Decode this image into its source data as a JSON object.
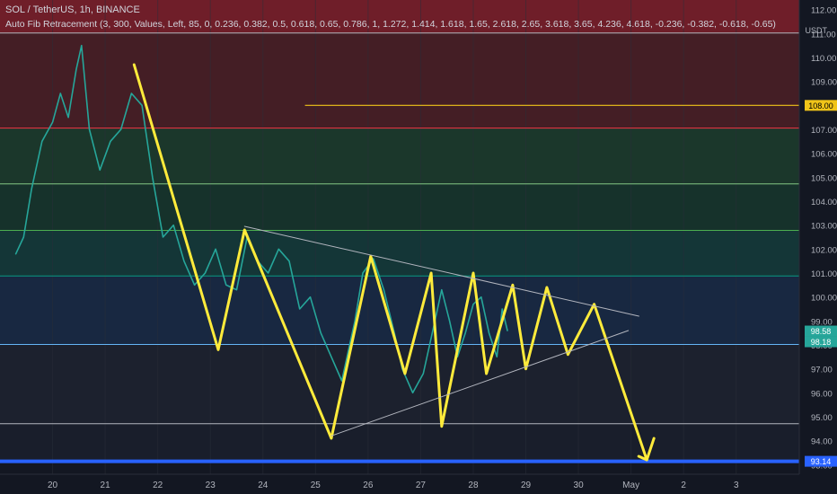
{
  "header": {
    "symbol": "SOL / TetherUS",
    "interval": "1h",
    "exchange": "BINANCE",
    "indicator": "Auto Fib Retracement (3, 300, Values, Left, 85, 0, 0.236, 0.382, 0.5, 0.618, 0.65, 0.786, 1, 1.272, 1.414, 1.618, 1.65, 2.618, 2.65, 3.618, 3.65, 4.236, 4.618, -0.236, -0.382, -0.618, -0.65)"
  },
  "price_axis": {
    "currency": "USDT",
    "ticks": [
      "112.00",
      "111.00",
      "110.00",
      "109.00",
      "108.00",
      "107.00",
      "106.00",
      "105.00",
      "104.00",
      "103.00",
      "102.00",
      "101.00",
      "100.00",
      "99.00",
      "98.00",
      "97.00",
      "96.00",
      "95.00",
      "94.00",
      "93.00"
    ]
  },
  "price_labels": [
    {
      "text": "108.00",
      "value": 108.0,
      "color": "#f0c419",
      "text_color": "#000000"
    },
    {
      "text": "98.58",
      "value": 98.58,
      "color": "#26a69a",
      "text_color": "#ffffff"
    },
    {
      "text": "98.18",
      "value": 98.18,
      "color": "#26a69a",
      "text_color": "#ffffff"
    },
    {
      "text": "93.14",
      "value": 93.14,
      "color": "#2962ff",
      "text_color": "#ffffff"
    }
  ],
  "time_axis": {
    "ticks": [
      {
        "label": "20",
        "day": 20
      },
      {
        "label": "21",
        "day": 21
      },
      {
        "label": "22",
        "day": 22
      },
      {
        "label": "23",
        "day": 23
      },
      {
        "label": "24",
        "day": 24
      },
      {
        "label": "25",
        "day": 25
      },
      {
        "label": "26",
        "day": 26
      },
      {
        "label": "27",
        "day": 27
      },
      {
        "label": "28",
        "day": 28
      },
      {
        "label": "29",
        "day": 29
      },
      {
        "label": "30",
        "day": 30
      },
      {
        "label": "May",
        "day": 31
      },
      {
        "label": "2",
        "day": 32
      },
      {
        "label": "3",
        "day": 33
      }
    ]
  },
  "chart_data": {
    "type": "line",
    "series": [
      {
        "role": "price_close",
        "color": "#26a69a",
        "points": [
          [
            19.3,
            101.8
          ],
          [
            19.45,
            102.5
          ],
          [
            19.6,
            104.5
          ],
          [
            19.8,
            106.5
          ],
          [
            20.0,
            107.3
          ],
          [
            20.15,
            108.5
          ],
          [
            20.3,
            107.5
          ],
          [
            20.45,
            109.5
          ],
          [
            20.55,
            110.5
          ],
          [
            20.7,
            107.0
          ],
          [
            20.9,
            105.3
          ],
          [
            21.1,
            106.5
          ],
          [
            21.3,
            107.0
          ],
          [
            21.5,
            108.5
          ],
          [
            21.7,
            108.0
          ],
          [
            21.9,
            105.0
          ],
          [
            22.1,
            102.5
          ],
          [
            22.3,
            103.0
          ],
          [
            22.5,
            101.5
          ],
          [
            22.7,
            100.5
          ],
          [
            22.9,
            101.0
          ],
          [
            23.1,
            102.0
          ],
          [
            23.3,
            100.5
          ],
          [
            23.5,
            100.3
          ],
          [
            23.7,
            102.5
          ],
          [
            23.9,
            101.5
          ],
          [
            24.1,
            101.0
          ],
          [
            24.3,
            102.0
          ],
          [
            24.5,
            101.5
          ],
          [
            24.7,
            99.5
          ],
          [
            24.9,
            100.0
          ],
          [
            25.1,
            98.5
          ],
          [
            25.3,
            97.5
          ],
          [
            25.5,
            96.5
          ],
          [
            25.6,
            97.5
          ],
          [
            25.75,
            99.0
          ],
          [
            25.9,
            101.0
          ],
          [
            26.1,
            101.6
          ],
          [
            26.3,
            100.3
          ],
          [
            26.5,
            98.5
          ],
          [
            26.65,
            97.0
          ],
          [
            26.85,
            96.0
          ],
          [
            27.05,
            96.8
          ],
          [
            27.25,
            98.8
          ],
          [
            27.4,
            100.3
          ],
          [
            27.55,
            99.0
          ],
          [
            27.7,
            97.5
          ],
          [
            27.85,
            98.5
          ],
          [
            28.0,
            99.7
          ],
          [
            28.15,
            100.0
          ],
          [
            28.3,
            98.5
          ],
          [
            28.45,
            97.5
          ],
          [
            28.55,
            99.5
          ],
          [
            28.65,
            98.6
          ]
        ]
      },
      {
        "role": "projection_zigzag",
        "color": "#ffeb3b",
        "points": [
          [
            21.55,
            109.7
          ],
          [
            23.15,
            97.8
          ],
          [
            23.65,
            102.8
          ],
          [
            25.3,
            94.1
          ],
          [
            26.05,
            101.7
          ],
          [
            26.7,
            96.8
          ],
          [
            27.2,
            101.0
          ],
          [
            27.4,
            94.6
          ],
          [
            28.0,
            101.0
          ],
          [
            28.25,
            96.8
          ],
          [
            28.75,
            100.5
          ],
          [
            29.0,
            97.0
          ],
          [
            29.4,
            100.4
          ],
          [
            29.8,
            97.6
          ],
          [
            30.3,
            99.7
          ],
          [
            31.3,
            93.2
          ]
        ]
      },
      {
        "role": "trendline_upper",
        "color": "#b2b5be",
        "points": [
          [
            23.65,
            102.95
          ],
          [
            31.15,
            99.2
          ]
        ]
      },
      {
        "role": "trendline_lower",
        "color": "#b2b5be",
        "points": [
          [
            25.3,
            94.2
          ],
          [
            30.95,
            98.6
          ]
        ]
      }
    ],
    "fib_levels": [
      {
        "value": 111.02,
        "color": "#b2b5be",
        "fill": "#7a1f2a"
      },
      {
        "value": 107.05,
        "color": "#f23645",
        "fill": "#4a1f26"
      },
      {
        "value": 104.72,
        "color": "#81c784",
        "fill": "#1d3b2c"
      },
      {
        "value": 102.78,
        "color": "#4caf50",
        "fill": "#17352c"
      },
      {
        "value": 100.88,
        "color": "#089981",
        "fill": "#153a3a"
      },
      {
        "value": 98.02,
        "color": "#64b5f6",
        "fill": "#1a2a45"
      },
      {
        "value": 94.71,
        "color": "#b2b5be",
        "fill": "#1e2230"
      },
      {
        "value": 93.14,
        "color": "#2962ff",
        "fill": "#1b1f2c"
      }
    ],
    "horizontal_ray": {
      "value": 108.0,
      "start_day": 24.8,
      "color": "#f0c419"
    },
    "ylim": [
      92.6,
      112.4
    ],
    "xlim": [
      19.0,
      34.2
    ],
    "xlabel": "",
    "ylabel": ""
  }
}
